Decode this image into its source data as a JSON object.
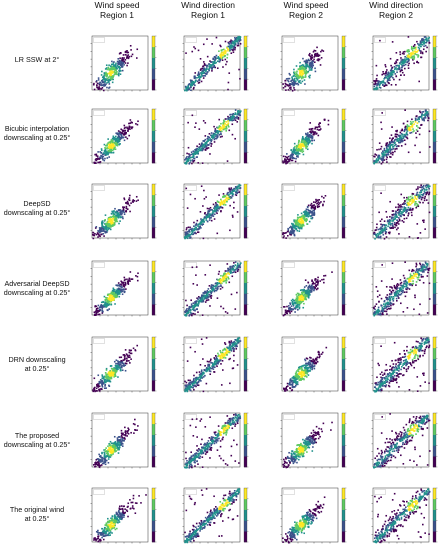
{
  "columns": [
    {
      "line1": "Wind speed",
      "line2": "Region 1"
    },
    {
      "line1": "Wind direction",
      "line2": "Region 1"
    },
    {
      "line1": "Wind speed",
      "line2": "Region 2"
    },
    {
      "line1": "Wind direction",
      "line2": "Region 2"
    }
  ],
  "rows": [
    {
      "line1": "LR SSW at 2°",
      "line2": ""
    },
    {
      "line1": "Bicubic interpolation",
      "line2": "downscaling at 0.25°"
    },
    {
      "line1": "DeepSD",
      "line2": "downscaling at 0.25°"
    },
    {
      "line1": "Adversarial DeepSD",
      "line2": "downscaling at 0.25°"
    },
    {
      "line1": "DRN downscaling",
      "line2": "at 0.25°"
    },
    {
      "line1": "The proposed",
      "line2": "downscaling at 0.25°"
    },
    {
      "line1": "The original wind",
      "line2": "at 0.25°"
    }
  ],
  "colors": {
    "colormap": [
      "#440154",
      "#3b528b",
      "#21918c",
      "#5ec962",
      "#fde725"
    ]
  }
}
